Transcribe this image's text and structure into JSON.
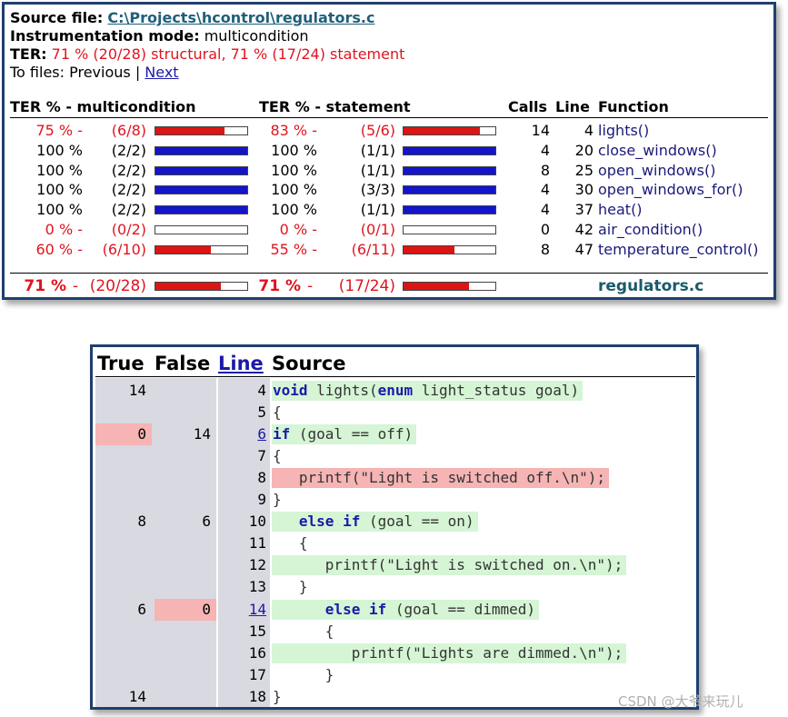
{
  "summary": {
    "source_label": "Source file:",
    "source_path": "C:\\Projects\\hcontrol\\regulators.c",
    "mode_label": "Instrumentation mode:",
    "mode_value": "multicondition",
    "ter_label": "TER:",
    "ter_value": "71 % (20/28) structural, 71 % (17/24) statement",
    "to_files_label": "To files: Previous |",
    "next_link": "Next",
    "columns": {
      "ter_multicondition": "TER % - multicondition",
      "ter_statement": "TER % - statement",
      "calls": "Calls",
      "line": "Line",
      "function": "Function"
    },
    "rows": [
      {
        "m_pct": "75 % -",
        "m_frac": "(6/8)",
        "m_fill": 0.75,
        "s_pct": "83 % -",
        "s_frac": "(5/6)",
        "s_fill": 0.83,
        "calls": "14",
        "line": "4",
        "function": "lights()",
        "status": "partial"
      },
      {
        "m_pct": "100 %",
        "m_frac": "(2/2)",
        "m_fill": 1.0,
        "s_pct": "100 %",
        "s_frac": "(1/1)",
        "s_fill": 1.0,
        "calls": "4",
        "line": "20",
        "function": "close_windows()",
        "status": "full"
      },
      {
        "m_pct": "100 %",
        "m_frac": "(2/2)",
        "m_fill": 1.0,
        "s_pct": "100 %",
        "s_frac": "(1/1)",
        "s_fill": 1.0,
        "calls": "8",
        "line": "25",
        "function": "open_windows()",
        "status": "full"
      },
      {
        "m_pct": "100 %",
        "m_frac": "(2/2)",
        "m_fill": 1.0,
        "s_pct": "100 %",
        "s_frac": "(3/3)",
        "s_fill": 1.0,
        "calls": "4",
        "line": "30",
        "function": "open_windows_for()",
        "status": "full"
      },
      {
        "m_pct": "100 %",
        "m_frac": "(2/2)",
        "m_fill": 1.0,
        "s_pct": "100 %",
        "s_frac": "(1/1)",
        "s_fill": 1.0,
        "calls": "4",
        "line": "37",
        "function": "heat()",
        "status": "full"
      },
      {
        "m_pct": "0 % -",
        "m_frac": "(0/2)",
        "m_fill": 0.0,
        "s_pct": "0 % -",
        "s_frac": "(0/1)",
        "s_fill": 0.0,
        "calls": "0",
        "line": "42",
        "function": "air_condition()",
        "status": "partial"
      },
      {
        "m_pct": "60 % -",
        "m_frac": "(6/10)",
        "m_fill": 0.6,
        "s_pct": "55 % -",
        "s_frac": "(6/11)",
        "s_fill": 0.55,
        "calls": "8",
        "line": "47",
        "function": "temperature_control()",
        "status": "partial"
      }
    ],
    "total": {
      "m_pct": "71 %",
      "m_dash": "-",
      "m_frac": "(20/28)",
      "m_fill": 0.71,
      "s_pct": "71 %",
      "s_dash": "-",
      "s_frac": "(17/24)",
      "s_fill": 0.71,
      "file": "regulators.c"
    }
  },
  "source_view": {
    "headers": {
      "true": "True",
      "false": "False",
      "line": "Line",
      "source": "Source"
    },
    "lines": [
      {
        "true": "14",
        "false": "",
        "line": "4",
        "link": false,
        "indent": 0,
        "code": [
          [
            "kw",
            "void"
          ],
          [
            "t",
            " lights("
          ],
          [
            "kw",
            "enum"
          ],
          [
            "t",
            " light_status goal)"
          ]
        ],
        "hl": "green",
        "true_red": false,
        "false_red": false
      },
      {
        "true": "",
        "false": "",
        "line": "5",
        "link": false,
        "indent": 0,
        "code": [
          [
            "t",
            "{"
          ]
        ],
        "hl": "",
        "true_red": false,
        "false_red": false
      },
      {
        "true": "0",
        "false": "14",
        "line": "6",
        "link": true,
        "indent": 0,
        "code": [
          [
            "kw",
            "if"
          ],
          [
            "t",
            " (goal == off)"
          ]
        ],
        "hl": "green",
        "true_red": true,
        "false_red": false
      },
      {
        "true": "",
        "false": "",
        "line": "7",
        "link": false,
        "indent": 0,
        "code": [
          [
            "t",
            "{"
          ]
        ],
        "hl": "",
        "true_red": false,
        "false_red": false
      },
      {
        "true": "",
        "false": "",
        "line": "8",
        "link": false,
        "indent": 0,
        "code": [
          [
            "t",
            "   printf(\"Light is switched off.\\n\");"
          ]
        ],
        "hl": "red",
        "true_red": false,
        "false_red": false
      },
      {
        "true": "",
        "false": "",
        "line": "9",
        "link": false,
        "indent": 0,
        "code": [
          [
            "t",
            "}"
          ]
        ],
        "hl": "",
        "true_red": false,
        "false_red": false
      },
      {
        "true": "8",
        "false": "6",
        "line": "10",
        "link": false,
        "indent": 0,
        "code": [
          [
            "t",
            "   "
          ],
          [
            "kw",
            "else if"
          ],
          [
            "t",
            " (goal == on)"
          ]
        ],
        "hl": "green",
        "true_red": false,
        "false_red": false
      },
      {
        "true": "",
        "false": "",
        "line": "11",
        "link": false,
        "indent": 0,
        "code": [
          [
            "t",
            "   {"
          ]
        ],
        "hl": "",
        "true_red": false,
        "false_red": false
      },
      {
        "true": "",
        "false": "",
        "line": "12",
        "link": false,
        "indent": 0,
        "code": [
          [
            "t",
            "      printf(\"Light is switched on.\\n\");"
          ]
        ],
        "hl": "green",
        "true_red": false,
        "false_red": false
      },
      {
        "true": "",
        "false": "",
        "line": "13",
        "link": false,
        "indent": 0,
        "code": [
          [
            "t",
            "   }"
          ]
        ],
        "hl": "",
        "true_red": false,
        "false_red": false
      },
      {
        "true": "6",
        "false": "0",
        "line": "14",
        "link": true,
        "indent": 0,
        "code": [
          [
            "t",
            "      "
          ],
          [
            "kw",
            "else if"
          ],
          [
            "t",
            " (goal == dimmed)"
          ]
        ],
        "hl": "green",
        "true_red": false,
        "false_red": true
      },
      {
        "true": "",
        "false": "",
        "line": "15",
        "link": false,
        "indent": 0,
        "code": [
          [
            "t",
            "      {"
          ]
        ],
        "hl": "",
        "true_red": false,
        "false_red": false
      },
      {
        "true": "",
        "false": "",
        "line": "16",
        "link": false,
        "indent": 0,
        "code": [
          [
            "t",
            "         printf(\"Lights are dimmed.\\n\");"
          ]
        ],
        "hl": "green",
        "true_red": false,
        "false_red": false
      },
      {
        "true": "",
        "false": "",
        "line": "17",
        "link": false,
        "indent": 0,
        "code": [
          [
            "t",
            "      }"
          ]
        ],
        "hl": "",
        "true_red": false,
        "false_red": false
      },
      {
        "true": "14",
        "false": "",
        "line": "18",
        "link": false,
        "indent": 0,
        "code": [
          [
            "t",
            "}"
          ]
        ],
        "hl": "",
        "true_red": false,
        "false_red": false
      }
    ]
  },
  "watermark": "CSDN @大爷来玩儿",
  "colors": {
    "covered": "#1414c8",
    "uncovered": "#dc1414",
    "bar_empty": "#ffffff",
    "highlight_red": "#f6b4b4",
    "highlight_green": "#d5f5d5"
  }
}
